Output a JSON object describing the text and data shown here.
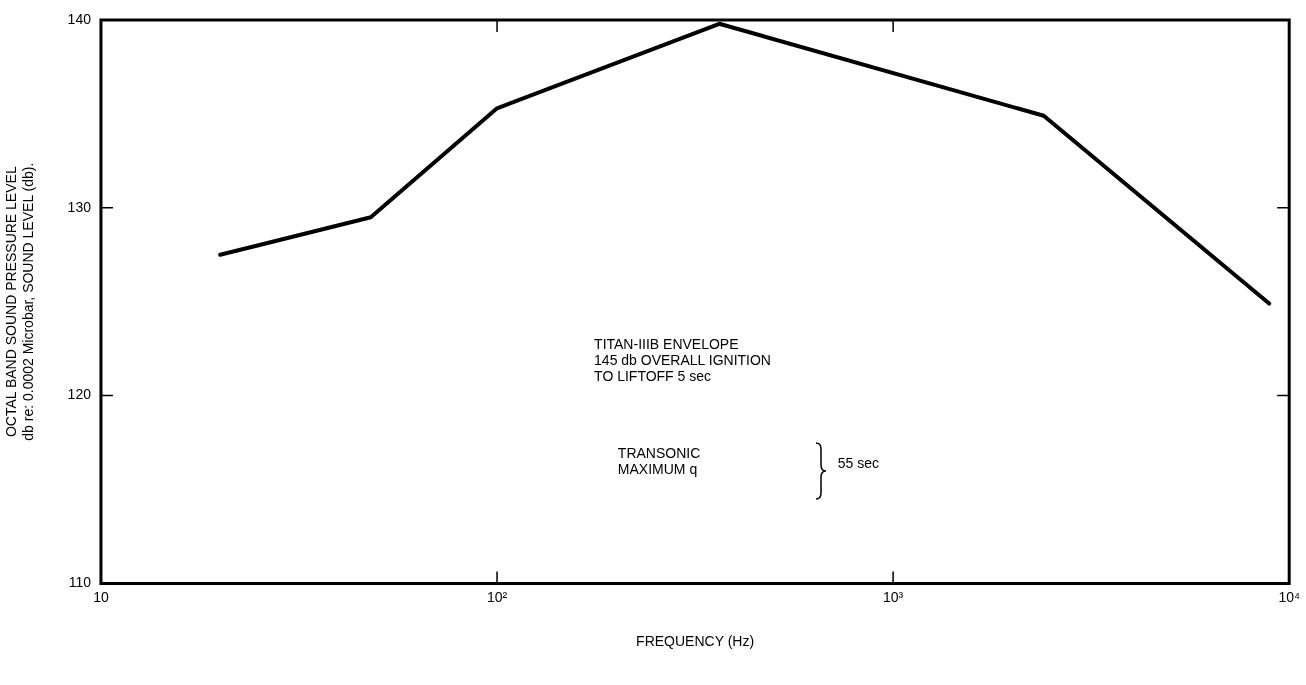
{
  "chart_data": {
    "type": "line",
    "xlabel": "FREQUENCY (Hz)",
    "ylabel": "OCTAL BAND SOUND PRESSURE LEVEL\ndb re: 0.0002 Microbar, SOUND LEVEL (db).",
    "x": [
      20,
      48,
      100,
      364,
      2400,
      6500,
      8900
    ],
    "series": [
      {
        "color": "#000000",
        "values": [
          127.5,
          129.5,
          135.3,
          139.8,
          134.9,
          127.3,
          124.9
        ]
      }
    ],
    "log": "x",
    "xlim": [
      10,
      10000
    ],
    "xticks": [
      10,
      {
        "value": 100,
        "label": "10²"
      },
      {
        "value": 1000,
        "label": "10³"
      },
      {
        "value": 10000,
        "label": "10⁴"
      }
    ],
    "ylim": [
      110,
      140
    ],
    "yticks": [
      110,
      120,
      130,
      140
    ],
    "grid": false,
    "legend": false,
    "marker": "none",
    "line_style": "solid",
    "annotations": [
      "TITAN-IIIB ENVELOPE\n145 db OVERALL IGNITION\nTO LIFTOFF 5 sec",
      "TRANSONIC\nMAXIMUM q",
      "55 sec"
    ]
  }
}
